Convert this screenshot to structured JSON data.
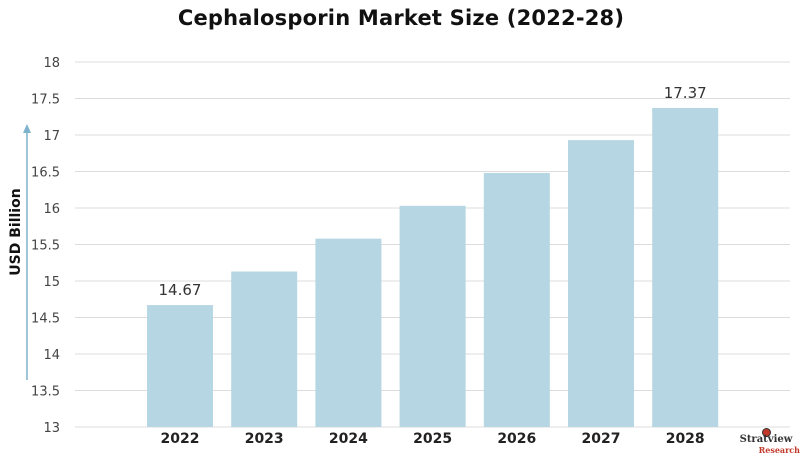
{
  "chart_data": {
    "type": "bar",
    "title": "Cephalosporin Market Size (2022-28)",
    "ylabel": "USD Billion",
    "xlabel": "",
    "categories": [
      "2022",
      "2023",
      "2024",
      "2025",
      "2026",
      "2027",
      "2028"
    ],
    "values": [
      14.67,
      15.13,
      15.58,
      16.03,
      16.48,
      16.93,
      17.37
    ],
    "data_labels": {
      "2022": "14.67",
      "2028": "17.37"
    },
    "ylim": [
      13,
      18
    ],
    "yticks": [
      "13",
      "13.5",
      "14",
      "14.5",
      "15",
      "15.5",
      "16",
      "16.5",
      "17",
      "17.5",
      "18"
    ],
    "grid": true,
    "bar_color": "#b5d6e2",
    "axis_arrow_color": "#7fb3cc"
  },
  "logo": {
    "line1": "Stratview",
    "line2": "Research"
  }
}
